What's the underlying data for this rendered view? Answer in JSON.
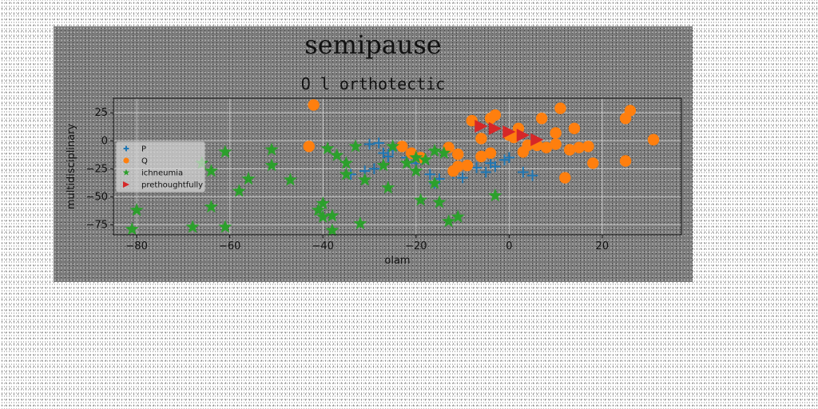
{
  "chart_data": {
    "type": "scatter",
    "suptitle": "semipause",
    "title": "O l orthotectic",
    "xlabel": "olam",
    "ylabel": "multidisciplinary",
    "xlim": [
      -85,
      37
    ],
    "ylim": [
      -84,
      38
    ],
    "xticks": [
      -80,
      -60,
      -40,
      -20,
      0,
      20
    ],
    "yticks": [
      25,
      0,
      -25,
      -50,
      -75
    ],
    "grid": true,
    "legend": "upper-left",
    "series": [
      {
        "name": "P",
        "marker": "plus",
        "color": "#1f77b4",
        "points": [
          [
            -34,
            -30
          ],
          [
            -31,
            -27
          ],
          [
            -30,
            -3
          ],
          [
            -29,
            -25
          ],
          [
            -28,
            -2
          ],
          [
            -27,
            -11
          ],
          [
            -26,
            -14
          ],
          [
            -25,
            -8
          ],
          [
            -22,
            -15
          ],
          [
            -20,
            -20
          ],
          [
            -17,
            -30
          ],
          [
            -16,
            -38
          ],
          [
            -15,
            -34
          ],
          [
            -12,
            -29
          ],
          [
            -10,
            -33
          ],
          [
            -7,
            -24
          ],
          [
            -5,
            -28
          ],
          [
            -4,
            -20
          ],
          [
            -3,
            -23
          ],
          [
            -1,
            -17
          ],
          [
            0,
            -15
          ],
          [
            3,
            -28
          ],
          [
            5,
            -31
          ]
        ]
      },
      {
        "name": "Q",
        "marker": "circle",
        "color": "#ff7f0e",
        "points": [
          [
            -42,
            32
          ],
          [
            -43,
            -5
          ],
          [
            -23,
            -5
          ],
          [
            -21,
            -11
          ],
          [
            -19,
            -15
          ],
          [
            -13,
            -6
          ],
          [
            -11,
            -12
          ],
          [
            -11,
            -23
          ],
          [
            -9,
            -22
          ],
          [
            -12,
            -27
          ],
          [
            -8,
            18
          ],
          [
            -6,
            2
          ],
          [
            -4,
            20
          ],
          [
            -3,
            23
          ],
          [
            -4,
            -11
          ],
          [
            -6,
            -14
          ],
          [
            0,
            5
          ],
          [
            1,
            3
          ],
          [
            2,
            11
          ],
          [
            3,
            -10
          ],
          [
            4,
            -4
          ],
          [
            6,
            -4
          ],
          [
            7,
            20
          ],
          [
            8,
            -6
          ],
          [
            10,
            -3
          ],
          [
            10,
            7
          ],
          [
            11,
            29
          ],
          [
            13,
            -8
          ],
          [
            14,
            11
          ],
          [
            12,
            -33
          ],
          [
            15,
            -6
          ],
          [
            17,
            -5
          ],
          [
            18,
            -20
          ],
          [
            25,
            20
          ],
          [
            26,
            27
          ],
          [
            25,
            -18
          ],
          [
            31,
            1
          ]
        ]
      },
      {
        "name": "ichneumia",
        "marker": "star",
        "color": "#2ca02c",
        "points": [
          [
            -81,
            -79
          ],
          [
            -80,
            -62
          ],
          [
            -66,
            -20
          ],
          [
            -64,
            -27
          ],
          [
            -64,
            -59
          ],
          [
            -68,
            -77
          ],
          [
            -61,
            -10
          ],
          [
            -61,
            -77
          ],
          [
            -58,
            -45
          ],
          [
            -56,
            -34
          ],
          [
            -51,
            -8
          ],
          [
            -51,
            -22
          ],
          [
            -47,
            -35
          ],
          [
            -41,
            -62
          ],
          [
            -40,
            -56
          ],
          [
            -40,
            -68
          ],
          [
            -39,
            -7
          ],
          [
            -38,
            -80
          ],
          [
            -38,
            -67
          ],
          [
            -37,
            -13
          ],
          [
            -35,
            -20
          ],
          [
            -35,
            -30
          ],
          [
            -33,
            -5
          ],
          [
            -32,
            -74
          ],
          [
            -31,
            -35
          ],
          [
            -27,
            -22
          ],
          [
            -26,
            -42
          ],
          [
            -25,
            -5
          ],
          [
            -22,
            -20
          ],
          [
            -20,
            -27
          ],
          [
            -20,
            -15
          ],
          [
            -19,
            -53
          ],
          [
            -18,
            -17
          ],
          [
            -16,
            -38
          ],
          [
            -16,
            -9
          ],
          [
            -15,
            -55
          ],
          [
            -14,
            -11
          ],
          [
            -13,
            -72
          ],
          [
            -11,
            -68
          ],
          [
            -3,
            -49
          ]
        ]
      },
      {
        "name": "prethoughtfully",
        "marker": "triangle",
        "color": "#d62728",
        "points": [
          [
            -6,
            13
          ],
          [
            -3,
            11
          ],
          [
            0,
            8
          ],
          [
            3,
            5
          ],
          [
            6,
            1
          ]
        ]
      }
    ]
  }
}
